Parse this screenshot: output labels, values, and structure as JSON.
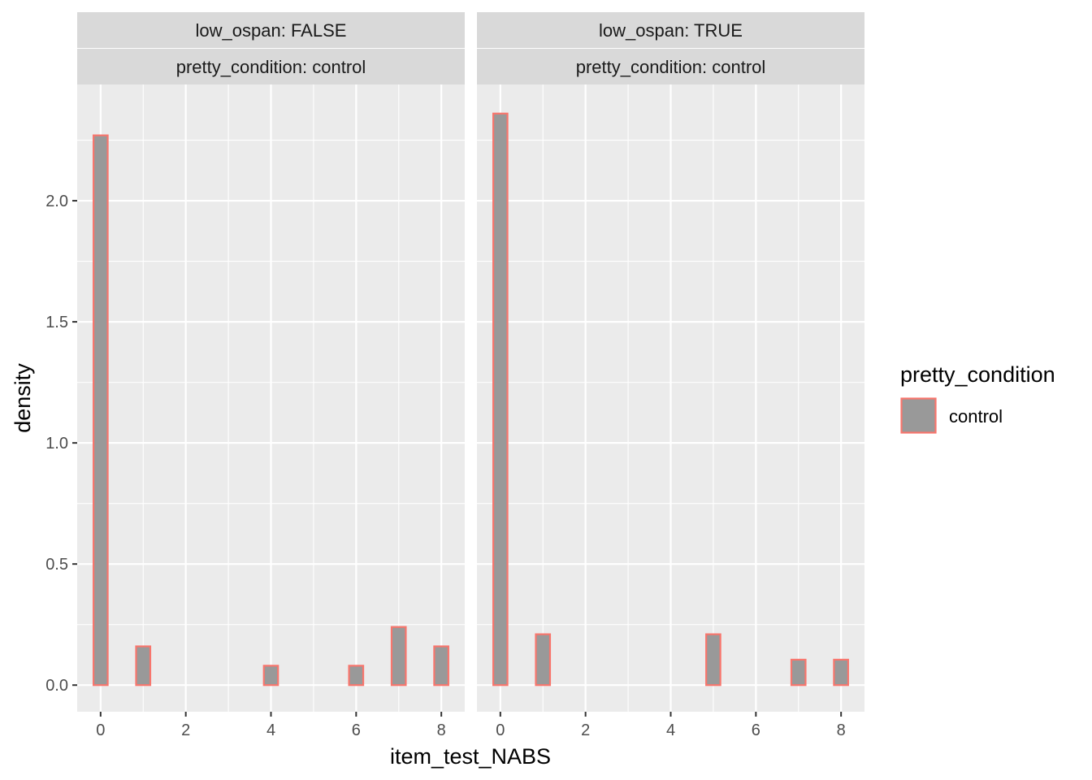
{
  "chart_data": {
    "type": "bar",
    "subtype": "histogram",
    "xlabel": "item_test_NABS",
    "ylabel": "density",
    "xlim": [
      -0.55,
      8.55
    ],
    "ylim": [
      -0.11,
      2.48
    ],
    "x_ticks": [
      0,
      2,
      4,
      6,
      8
    ],
    "y_ticks": [
      0.0,
      0.5,
      1.0,
      1.5,
      2.0
    ],
    "x_tick_labels": [
      "0",
      "2",
      "4",
      "6",
      "8"
    ],
    "y_tick_labels": [
      "0.0",
      "0.5",
      "1.0",
      "1.5",
      "2.0"
    ],
    "bin_width": 0.3333,
    "grid": true,
    "fill_color": "#999999",
    "outline_color": "#F8766D",
    "panel_bg": "#EBEBEB",
    "strip_bg": "#D9D9D9",
    "legend": {
      "title": "pretty_condition",
      "placement": "right",
      "entries": [
        {
          "label": "control",
          "fill": "#999999",
          "outline": "#F8766D"
        }
      ]
    },
    "panels": [
      {
        "strip_top": "low_ospan: FALSE",
        "strip_bottom": "pretty_condition: control",
        "bars": [
          {
            "x": 0,
            "density": 2.27
          },
          {
            "x": 1,
            "density": 0.16
          },
          {
            "x": 4,
            "density": 0.08
          },
          {
            "x": 6,
            "density": 0.08
          },
          {
            "x": 7,
            "density": 0.24
          },
          {
            "x": 8,
            "density": 0.16
          }
        ]
      },
      {
        "strip_top": "low_ospan: TRUE",
        "strip_bottom": "pretty_condition: control",
        "bars": [
          {
            "x": 0,
            "density": 2.36
          },
          {
            "x": 1,
            "density": 0.21
          },
          {
            "x": 5,
            "density": 0.21
          },
          {
            "x": 7,
            "density": 0.105
          },
          {
            "x": 8,
            "density": 0.105
          }
        ]
      }
    ]
  }
}
